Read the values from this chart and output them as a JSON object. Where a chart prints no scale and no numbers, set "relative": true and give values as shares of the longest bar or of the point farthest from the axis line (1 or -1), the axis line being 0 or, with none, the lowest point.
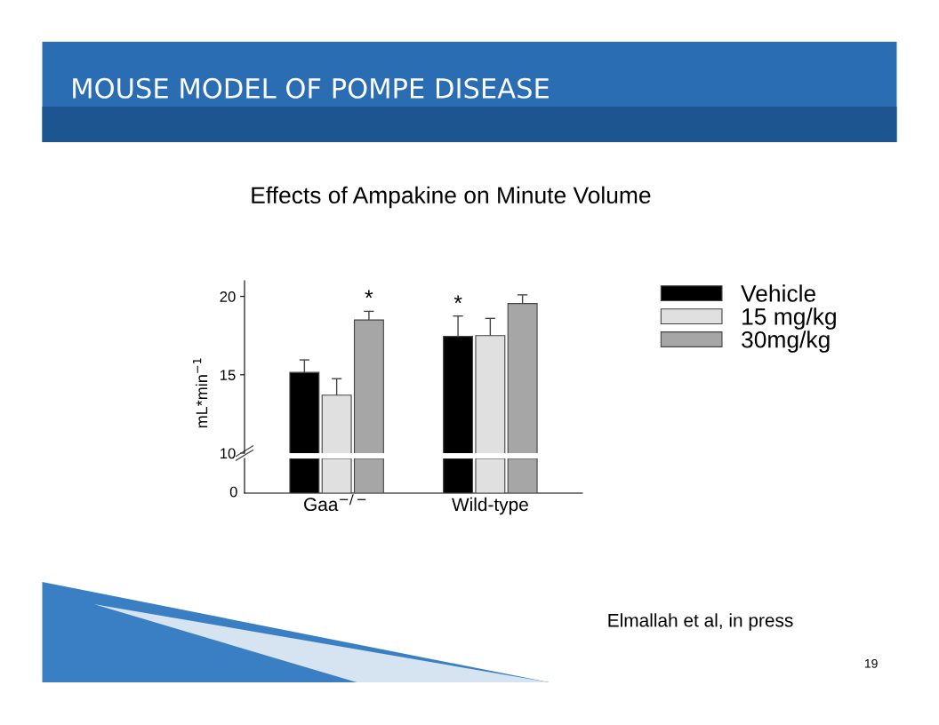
{
  "chart_data": [
    {
      "type": "bar",
      "title": "MOUSE MODEL OF POMPE DISEASE",
      "subtitle": "Effects of Ampakine on Minute Volume",
      "ylabel": "mL*min$^{−1}$",
      "categories": [
        null,
        null
      ],
      "series": [
        {
          "name": "Vehicle",
          "color": "#000000",
          "values": [
            15.15,
            17.45
          ],
          "errors": [
            0.8,
            1.3
          ]
        },
        {
          "name": "15 mg/kg",
          "color": "#e0e0e0",
          "values": [
            13.7,
            17.5
          ],
          "errors": [
            1.05,
            1.1
          ]
        },
        {
          "name": "30mg/kg",
          "color": "#a6a6a6",
          "values": [
            18.5,
            19.55
          ],
          "errors": [
            0.55,
            0.55
          ]
        }
      ],
      "ylim": [
        10,
        21
      ],
      "yticks": [
        10,
        15,
        20
      ],
      "tick_labels": "y",
      "legend": "top right",
      "grid": false,
      "annotations": [
        "*",
        "*",
        "Elmallah et al, in press",
        "19"
      ]
    },
    {
      "type": "bar",
      "categories": [
        "Gaa$^{−/−}$",
        "Wild-type"
      ],
      "series": [
        {
          "color": "#000000",
          "values": [
            1,
            1
          ]
        },
        {
          "color": "#e0e0e0",
          "values": [
            1,
            1
          ]
        },
        {
          "color": "#a6a6a6",
          "values": [
            1,
            1
          ]
        }
      ],
      "relative": true,
      "grid": false,
      "annotations": [
        "0"
      ]
    }
  ]
}
